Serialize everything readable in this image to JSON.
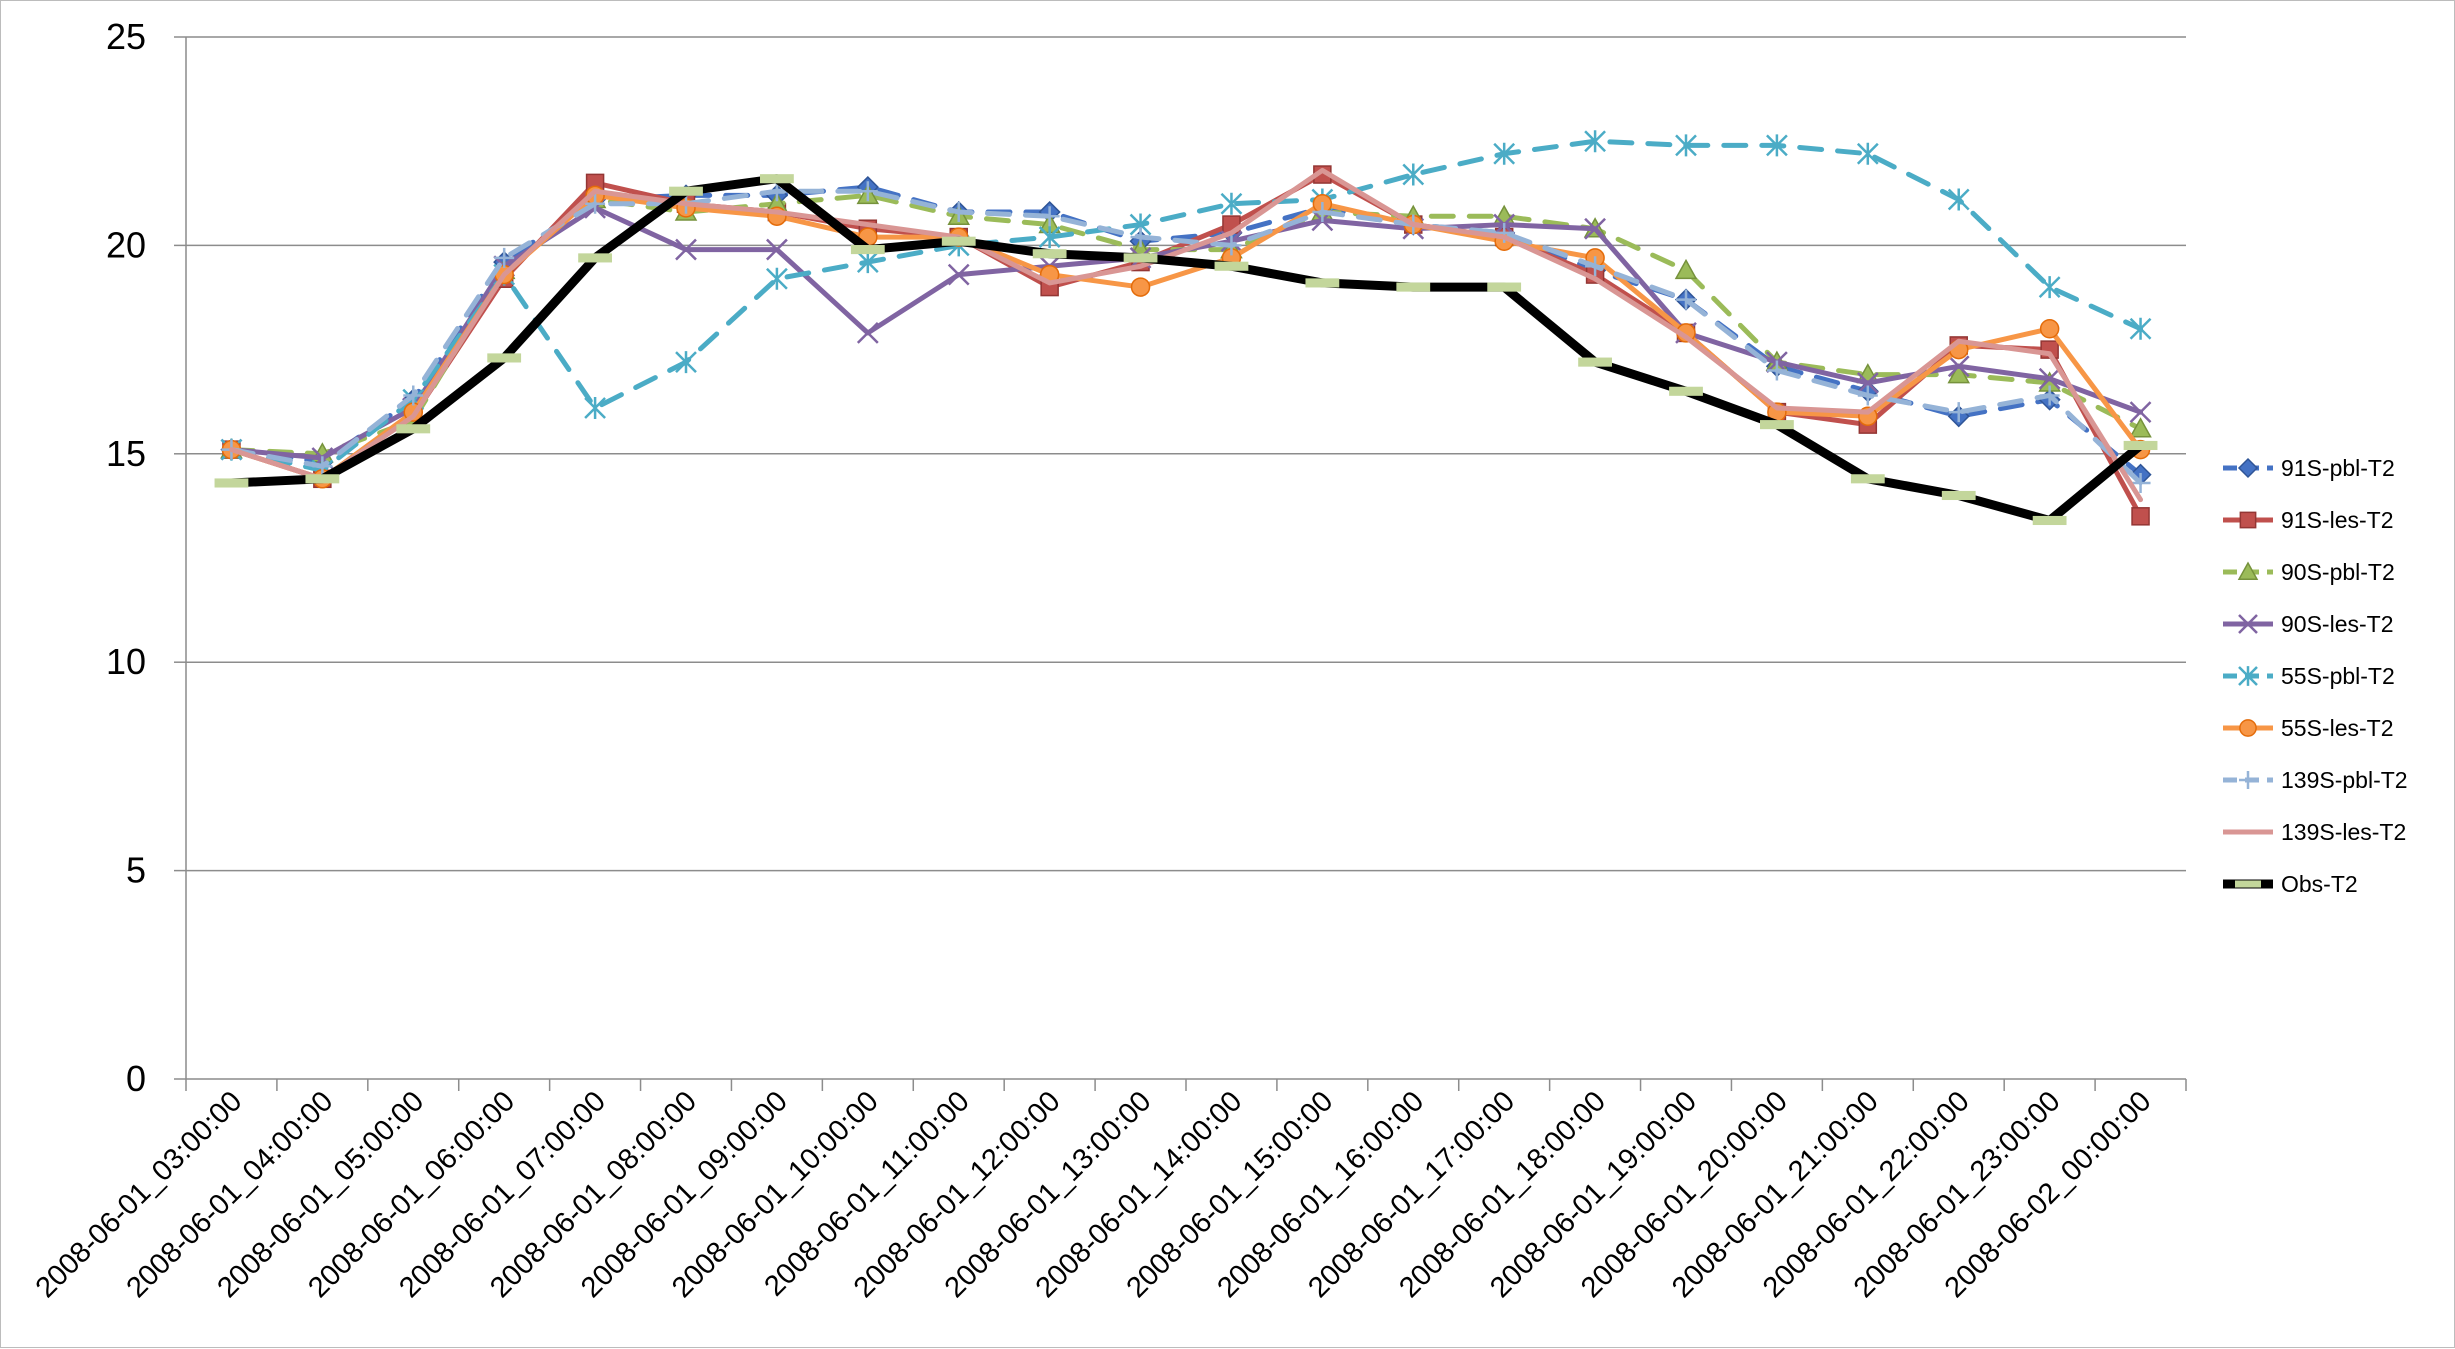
{
  "chart_data": {
    "type": "line",
    "title": "",
    "xlabel": "",
    "ylabel": "",
    "ylim": [
      0,
      25
    ],
    "yticks": [
      0,
      5,
      10,
      15,
      20,
      25
    ],
    "grid": "horizontal",
    "legend_position": "right",
    "categories": [
      "2008-06-01_03:00:00",
      "2008-06-01_04:00:00",
      "2008-06-01_05:00:00",
      "2008-06-01_06:00:00",
      "2008-06-01_07:00:00",
      "2008-06-01_08:00:00",
      "2008-06-01_09:00:00",
      "2008-06-01_10:00:00",
      "2008-06-01_11:00:00",
      "2008-06-01_12:00:00",
      "2008-06-01_13:00:00",
      "2008-06-01_14:00:00",
      "2008-06-01_15:00:00",
      "2008-06-01_16:00:00",
      "2008-06-01_17:00:00",
      "2008-06-01_18:00:00",
      "2008-06-01_19:00:00",
      "2008-06-01_20:00:00",
      "2008-06-01_21:00:00",
      "2008-06-01_22:00:00",
      "2008-06-01_23:00:00",
      "2008-06-02_00:00:00"
    ],
    "series": [
      {
        "name": "91S-pbl-T2",
        "color": "#4472c4",
        "dash": "dashed",
        "marker": "diamond",
        "values": [
          15.1,
          14.8,
          16.3,
          19.6,
          21.1,
          21.2,
          21.2,
          21.4,
          20.8,
          20.8,
          20.1,
          20.3,
          20.9,
          20.5,
          20.3,
          19.4,
          18.7,
          17.1,
          16.5,
          15.9,
          16.3,
          14.5
        ]
      },
      {
        "name": "91S-les-T2",
        "color": "#c0504d",
        "dash": "solid",
        "marker": "square",
        "values": [
          15.1,
          14.4,
          15.9,
          19.2,
          21.5,
          21.0,
          20.8,
          20.4,
          20.2,
          19.0,
          19.6,
          20.5,
          21.7,
          20.5,
          20.2,
          19.3,
          17.9,
          16.0,
          15.7,
          17.6,
          17.5,
          13.5
        ]
      },
      {
        "name": "90S-pbl-T2",
        "color": "#9bbb59",
        "dash": "dashed",
        "marker": "triangle",
        "values": [
          15.1,
          15.0,
          15.8,
          19.4,
          21.1,
          20.8,
          21.0,
          21.2,
          20.7,
          20.5,
          19.9,
          19.9,
          20.8,
          20.7,
          20.7,
          20.4,
          19.4,
          17.2,
          16.9,
          16.9,
          16.7,
          15.6
        ]
      },
      {
        "name": "90S-les-T2",
        "color": "#8064a2",
        "dash": "solid",
        "marker": "x",
        "values": [
          15.1,
          14.9,
          16.1,
          19.5,
          20.9,
          19.9,
          19.9,
          17.9,
          19.3,
          19.5,
          19.7,
          20.1,
          20.6,
          20.4,
          20.5,
          20.4,
          17.9,
          17.2,
          16.7,
          17.1,
          16.8,
          16.0
        ]
      },
      {
        "name": "55S-pbl-T2",
        "color": "#4bacc6",
        "dash": "dashed",
        "marker": "star",
        "values": [
          15.1,
          14.6,
          16.3,
          19.3,
          16.1,
          17.2,
          19.2,
          19.6,
          20.0,
          20.2,
          20.5,
          21.0,
          21.1,
          21.7,
          22.2,
          22.5,
          22.4,
          22.4,
          22.2,
          21.1,
          19.0,
          18.0
        ]
      },
      {
        "name": "55S-les-T2",
        "color": "#f79646",
        "dash": "solid",
        "marker": "circle",
        "values": [
          15.1,
          14.4,
          16.0,
          19.3,
          21.2,
          20.9,
          20.7,
          20.2,
          20.2,
          19.3,
          19.0,
          19.7,
          21.0,
          20.5,
          20.1,
          19.7,
          17.9,
          16.0,
          15.9,
          17.5,
          18.0,
          15.1
        ]
      },
      {
        "name": "139S-pbl-T2",
        "color": "#95b3d7",
        "dash": "dashed",
        "marker": "plus",
        "values": [
          15.1,
          14.7,
          16.4,
          19.7,
          21.0,
          21.0,
          21.3,
          21.3,
          20.8,
          20.7,
          20.2,
          20.0,
          20.8,
          20.5,
          20.3,
          19.5,
          18.7,
          17.0,
          16.4,
          16.0,
          16.4,
          14.3
        ]
      },
      {
        "name": "139S-les-T2",
        "color": "#d99694",
        "dash": "solid",
        "marker": "none",
        "values": [
          15.1,
          14.4,
          15.9,
          19.3,
          21.3,
          21.0,
          20.8,
          20.5,
          20.2,
          19.1,
          19.5,
          20.3,
          21.8,
          20.5,
          20.2,
          19.2,
          17.8,
          16.1,
          16.0,
          17.7,
          17.4,
          13.9
        ]
      },
      {
        "name": "Obs-T2",
        "color": "#000000",
        "dash": "solid",
        "marker": "dash",
        "marker_color": "#c3d69b",
        "values": [
          14.3,
          14.4,
          15.6,
          17.3,
          19.7,
          21.3,
          21.6,
          19.9,
          20.1,
          19.8,
          19.7,
          19.5,
          19.1,
          19.0,
          19.0,
          17.2,
          16.5,
          15.7,
          14.4,
          14.0,
          13.4,
          15.2
        ]
      }
    ]
  }
}
